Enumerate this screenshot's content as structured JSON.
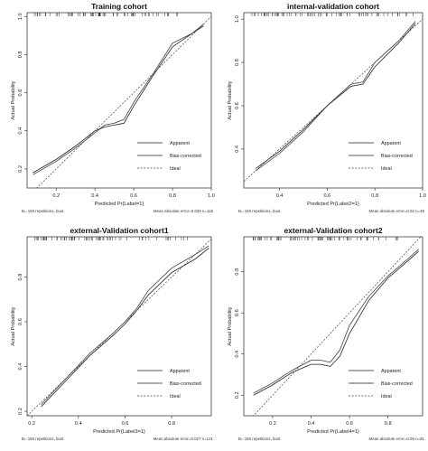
{
  "chart_data": [
    {
      "type": "line",
      "title": "Training cohort",
      "xlabel": "Predicted Pr{Label=1}",
      "ylabel": "Actual Probability",
      "xlim": [
        0.05,
        1.0
      ],
      "ylim": [
        0.1,
        1.02
      ],
      "xticks": [
        "0.2",
        "0.4",
        "0.6",
        "0.8",
        "1.0"
      ],
      "yticks": [
        "0.2",
        "0.4",
        "0.6",
        "0.8",
        "1.0"
      ],
      "grid": false,
      "legend": "bottom-right",
      "footer_left": "B= 150 repetitions, boot",
      "footer_right": "Mean absolute error=0.035 n=118",
      "series": [
        {
          "name": "Apparent",
          "x": [
            0.08,
            0.2,
            0.3,
            0.4,
            0.45,
            0.5,
            0.55,
            0.6,
            0.7,
            0.8,
            0.9,
            0.96
          ],
          "y": [
            0.17,
            0.24,
            0.31,
            0.39,
            0.43,
            0.44,
            0.46,
            0.55,
            0.7,
            0.86,
            0.91,
            0.96
          ]
        },
        {
          "name": "Bias-corrected",
          "x": [
            0.08,
            0.2,
            0.3,
            0.4,
            0.45,
            0.5,
            0.55,
            0.6,
            0.7,
            0.8,
            0.9,
            0.96
          ],
          "y": [
            0.18,
            0.25,
            0.32,
            0.4,
            0.42,
            0.43,
            0.44,
            0.53,
            0.69,
            0.84,
            0.91,
            0.95
          ]
        },
        {
          "name": "Ideal",
          "x": [
            0.05,
            1.0
          ],
          "y": [
            0.05,
            1.0
          ]
        }
      ]
    },
    {
      "type": "line",
      "title": "internal-validation cohort",
      "xlabel": "Predicted Pr{Label2=1}",
      "ylabel": "Actual Probability",
      "xlim": [
        0.25,
        1.0
      ],
      "ylim": [
        0.22,
        1.03
      ],
      "xticks": [
        "0.4",
        "0.6",
        "0.8",
        "1.0"
      ],
      "yticks": [
        "0.4",
        "0.6",
        "0.8",
        "1.0"
      ],
      "grid": false,
      "legend": "bottom-right",
      "footer_left": "B= 150 repetitions, boot",
      "footer_right": "Mean absolute error=0.02 n=49",
      "series": [
        {
          "name": "Apparent",
          "x": [
            0.3,
            0.4,
            0.5,
            0.6,
            0.7,
            0.75,
            0.8,
            0.9,
            0.97
          ],
          "y": [
            0.3,
            0.38,
            0.48,
            0.6,
            0.7,
            0.71,
            0.8,
            0.9,
            0.99
          ]
        },
        {
          "name": "Bias-corrected",
          "x": [
            0.3,
            0.4,
            0.5,
            0.6,
            0.7,
            0.75,
            0.8,
            0.9,
            0.97
          ],
          "y": [
            0.31,
            0.39,
            0.49,
            0.6,
            0.69,
            0.7,
            0.78,
            0.89,
            0.98
          ]
        },
        {
          "name": "Ideal",
          "x": [
            0.25,
            1.0
          ],
          "y": [
            0.25,
            1.0
          ]
        }
      ]
    },
    {
      "type": "line",
      "title": "external-Validation cohort1",
      "xlabel": "Predicted Pr{Label3=1}",
      "ylabel": "Actual Probability",
      "xlim": [
        0.18,
        0.97
      ],
      "ylim": [
        0.18,
        0.98
      ],
      "xticks": [
        "0.2",
        "0.4",
        "0.6",
        "0.8"
      ],
      "yticks": [
        "0.2",
        "0.4",
        "0.6",
        "0.8"
      ],
      "grid": false,
      "legend": "bottom-right",
      "footer_left": "B= 150 repetitions, boot",
      "footer_right": "Mean absolute error=0.027 n=121",
      "series": [
        {
          "name": "Apparent",
          "x": [
            0.24,
            0.35,
            0.45,
            0.55,
            0.6,
            0.65,
            0.7,
            0.8,
            0.9,
            0.96
          ],
          "y": [
            0.23,
            0.35,
            0.46,
            0.55,
            0.6,
            0.66,
            0.74,
            0.84,
            0.9,
            0.94
          ]
        },
        {
          "name": "Bias-corrected",
          "x": [
            0.24,
            0.35,
            0.45,
            0.55,
            0.6,
            0.65,
            0.7,
            0.8,
            0.9,
            0.96
          ],
          "y": [
            0.22,
            0.34,
            0.45,
            0.54,
            0.59,
            0.65,
            0.72,
            0.82,
            0.88,
            0.93
          ]
        },
        {
          "name": "Ideal",
          "x": [
            0.18,
            0.97
          ],
          "y": [
            0.18,
            0.97
          ]
        }
      ]
    },
    {
      "type": "line",
      "title": "external-Validation cohort2",
      "xlabel": "Predicted Pr{Label4=1}",
      "ylabel": "Actual Probability",
      "xlim": [
        0.05,
        0.98
      ],
      "ylim": [
        0.1,
        0.97
      ],
      "xticks": [
        "0.2",
        "0.4",
        "0.6",
        "0.8"
      ],
      "yticks": [
        "0.2",
        "0.4",
        "0.6",
        "0.8"
      ],
      "grid": false,
      "legend": "bottom-right",
      "footer_left": "B= 150 repetitions, boot",
      "footer_right": "Mean absolute error=0.05 n=81",
      "series": [
        {
          "name": "Apparent",
          "x": [
            0.1,
            0.2,
            0.3,
            0.4,
            0.45,
            0.5,
            0.55,
            0.6,
            0.7,
            0.8,
            0.9,
            0.96
          ],
          "y": [
            0.21,
            0.26,
            0.32,
            0.37,
            0.37,
            0.36,
            0.42,
            0.54,
            0.68,
            0.78,
            0.86,
            0.91
          ]
        },
        {
          "name": "Bias-corrected",
          "x": [
            0.1,
            0.2,
            0.3,
            0.4,
            0.45,
            0.5,
            0.55,
            0.6,
            0.7,
            0.8,
            0.9,
            0.96
          ],
          "y": [
            0.2,
            0.25,
            0.31,
            0.35,
            0.35,
            0.34,
            0.39,
            0.5,
            0.66,
            0.77,
            0.85,
            0.9
          ]
        },
        {
          "name": "Ideal",
          "x": [
            0.05,
            0.98
          ],
          "y": [
            0.05,
            0.98
          ]
        }
      ]
    }
  ]
}
